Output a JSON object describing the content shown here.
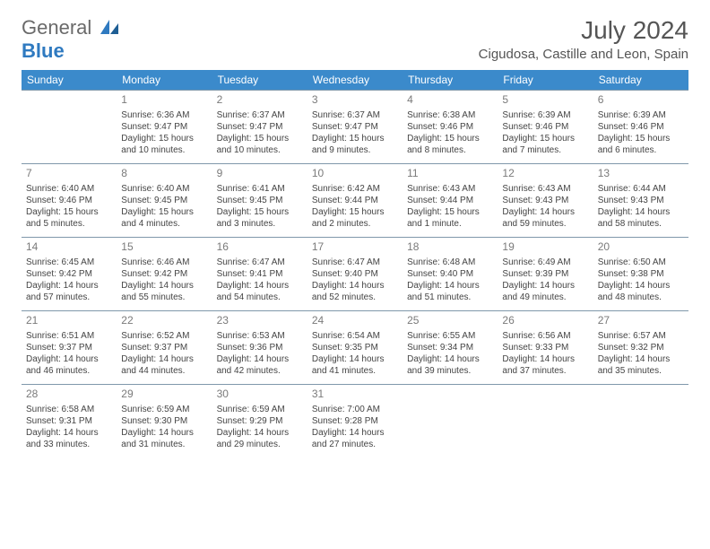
{
  "logo": {
    "text1": "General",
    "text2": "Blue"
  },
  "header": {
    "month_title": "July 2024",
    "location": "Cigudosa, Castille and Leon, Spain"
  },
  "colors": {
    "header_bg": "#3b8acb",
    "header_text": "#ffffff",
    "row_border": "#8098ab",
    "page_bg": "#ffffff",
    "text": "#444444",
    "title_text": "#555555"
  },
  "day_headers": [
    "Sunday",
    "Monday",
    "Tuesday",
    "Wednesday",
    "Thursday",
    "Friday",
    "Saturday"
  ],
  "weeks": [
    [
      {},
      {
        "n": "1",
        "sr": "Sunrise: 6:36 AM",
        "ss": "Sunset: 9:47 PM",
        "dl": "Daylight: 15 hours and 10 minutes."
      },
      {
        "n": "2",
        "sr": "Sunrise: 6:37 AM",
        "ss": "Sunset: 9:47 PM",
        "dl": "Daylight: 15 hours and 10 minutes."
      },
      {
        "n": "3",
        "sr": "Sunrise: 6:37 AM",
        "ss": "Sunset: 9:47 PM",
        "dl": "Daylight: 15 hours and 9 minutes."
      },
      {
        "n": "4",
        "sr": "Sunrise: 6:38 AM",
        "ss": "Sunset: 9:46 PM",
        "dl": "Daylight: 15 hours and 8 minutes."
      },
      {
        "n": "5",
        "sr": "Sunrise: 6:39 AM",
        "ss": "Sunset: 9:46 PM",
        "dl": "Daylight: 15 hours and 7 minutes."
      },
      {
        "n": "6",
        "sr": "Sunrise: 6:39 AM",
        "ss": "Sunset: 9:46 PM",
        "dl": "Daylight: 15 hours and 6 minutes."
      }
    ],
    [
      {
        "n": "7",
        "sr": "Sunrise: 6:40 AM",
        "ss": "Sunset: 9:46 PM",
        "dl": "Daylight: 15 hours and 5 minutes."
      },
      {
        "n": "8",
        "sr": "Sunrise: 6:40 AM",
        "ss": "Sunset: 9:45 PM",
        "dl": "Daylight: 15 hours and 4 minutes."
      },
      {
        "n": "9",
        "sr": "Sunrise: 6:41 AM",
        "ss": "Sunset: 9:45 PM",
        "dl": "Daylight: 15 hours and 3 minutes."
      },
      {
        "n": "10",
        "sr": "Sunrise: 6:42 AM",
        "ss": "Sunset: 9:44 PM",
        "dl": "Daylight: 15 hours and 2 minutes."
      },
      {
        "n": "11",
        "sr": "Sunrise: 6:43 AM",
        "ss": "Sunset: 9:44 PM",
        "dl": "Daylight: 15 hours and 1 minute."
      },
      {
        "n": "12",
        "sr": "Sunrise: 6:43 AM",
        "ss": "Sunset: 9:43 PM",
        "dl": "Daylight: 14 hours and 59 minutes."
      },
      {
        "n": "13",
        "sr": "Sunrise: 6:44 AM",
        "ss": "Sunset: 9:43 PM",
        "dl": "Daylight: 14 hours and 58 minutes."
      }
    ],
    [
      {
        "n": "14",
        "sr": "Sunrise: 6:45 AM",
        "ss": "Sunset: 9:42 PM",
        "dl": "Daylight: 14 hours and 57 minutes."
      },
      {
        "n": "15",
        "sr": "Sunrise: 6:46 AM",
        "ss": "Sunset: 9:42 PM",
        "dl": "Daylight: 14 hours and 55 minutes."
      },
      {
        "n": "16",
        "sr": "Sunrise: 6:47 AM",
        "ss": "Sunset: 9:41 PM",
        "dl": "Daylight: 14 hours and 54 minutes."
      },
      {
        "n": "17",
        "sr": "Sunrise: 6:47 AM",
        "ss": "Sunset: 9:40 PM",
        "dl": "Daylight: 14 hours and 52 minutes."
      },
      {
        "n": "18",
        "sr": "Sunrise: 6:48 AM",
        "ss": "Sunset: 9:40 PM",
        "dl": "Daylight: 14 hours and 51 minutes."
      },
      {
        "n": "19",
        "sr": "Sunrise: 6:49 AM",
        "ss": "Sunset: 9:39 PM",
        "dl": "Daylight: 14 hours and 49 minutes."
      },
      {
        "n": "20",
        "sr": "Sunrise: 6:50 AM",
        "ss": "Sunset: 9:38 PM",
        "dl": "Daylight: 14 hours and 48 minutes."
      }
    ],
    [
      {
        "n": "21",
        "sr": "Sunrise: 6:51 AM",
        "ss": "Sunset: 9:37 PM",
        "dl": "Daylight: 14 hours and 46 minutes."
      },
      {
        "n": "22",
        "sr": "Sunrise: 6:52 AM",
        "ss": "Sunset: 9:37 PM",
        "dl": "Daylight: 14 hours and 44 minutes."
      },
      {
        "n": "23",
        "sr": "Sunrise: 6:53 AM",
        "ss": "Sunset: 9:36 PM",
        "dl": "Daylight: 14 hours and 42 minutes."
      },
      {
        "n": "24",
        "sr": "Sunrise: 6:54 AM",
        "ss": "Sunset: 9:35 PM",
        "dl": "Daylight: 14 hours and 41 minutes."
      },
      {
        "n": "25",
        "sr": "Sunrise: 6:55 AM",
        "ss": "Sunset: 9:34 PM",
        "dl": "Daylight: 14 hours and 39 minutes."
      },
      {
        "n": "26",
        "sr": "Sunrise: 6:56 AM",
        "ss": "Sunset: 9:33 PM",
        "dl": "Daylight: 14 hours and 37 minutes."
      },
      {
        "n": "27",
        "sr": "Sunrise: 6:57 AM",
        "ss": "Sunset: 9:32 PM",
        "dl": "Daylight: 14 hours and 35 minutes."
      }
    ],
    [
      {
        "n": "28",
        "sr": "Sunrise: 6:58 AM",
        "ss": "Sunset: 9:31 PM",
        "dl": "Daylight: 14 hours and 33 minutes."
      },
      {
        "n": "29",
        "sr": "Sunrise: 6:59 AM",
        "ss": "Sunset: 9:30 PM",
        "dl": "Daylight: 14 hours and 31 minutes."
      },
      {
        "n": "30",
        "sr": "Sunrise: 6:59 AM",
        "ss": "Sunset: 9:29 PM",
        "dl": "Daylight: 14 hours and 29 minutes."
      },
      {
        "n": "31",
        "sr": "Sunrise: 7:00 AM",
        "ss": "Sunset: 9:28 PM",
        "dl": "Daylight: 14 hours and 27 minutes."
      },
      {},
      {},
      {}
    ]
  ]
}
